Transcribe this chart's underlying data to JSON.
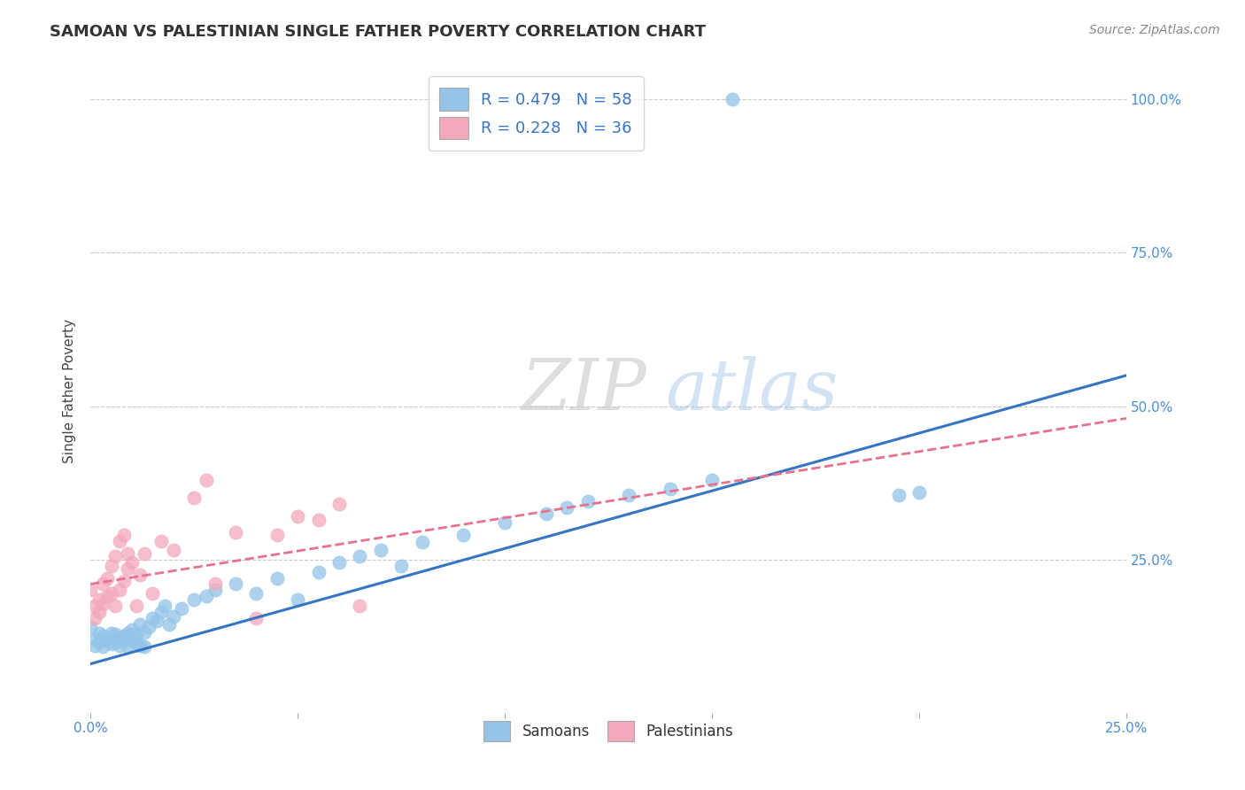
{
  "title": "SAMOAN VS PALESTINIAN SINGLE FATHER POVERTY CORRELATION CHART",
  "source": "Source: ZipAtlas.com",
  "ylabel": "Single Father Poverty",
  "samoan_color": "#93c4e8",
  "samoan_edge_color": "#93c4e8",
  "palestinian_color": "#f4a8bb",
  "samoan_line_color": "#3575c3",
  "palestinian_line_color": "#e8728e",
  "background_color": "#ffffff",
  "grid_color": "#cccccc",
  "samoan_points": [
    [
      0.0,
      0.14
    ],
    [
      0.001,
      0.12
    ],
    [
      0.001,
      0.11
    ],
    [
      0.002,
      0.13
    ],
    [
      0.002,
      0.115
    ],
    [
      0.003,
      0.125
    ],
    [
      0.003,
      0.108
    ],
    [
      0.004,
      0.12
    ],
    [
      0.004,
      0.118
    ],
    [
      0.005,
      0.13
    ],
    [
      0.005,
      0.112
    ],
    [
      0.006,
      0.128
    ],
    [
      0.006,
      0.115
    ],
    [
      0.007,
      0.122
    ],
    [
      0.007,
      0.11
    ],
    [
      0.008,
      0.125
    ],
    [
      0.008,
      0.118
    ],
    [
      0.009,
      0.13
    ],
    [
      0.009,
      0.108
    ],
    [
      0.01,
      0.135
    ],
    [
      0.01,
      0.118
    ],
    [
      0.011,
      0.128
    ],
    [
      0.011,
      0.115
    ],
    [
      0.012,
      0.145
    ],
    [
      0.012,
      0.11
    ],
    [
      0.013,
      0.132
    ],
    [
      0.013,
      0.108
    ],
    [
      0.014,
      0.14
    ],
    [
      0.015,
      0.155
    ],
    [
      0.016,
      0.15
    ],
    [
      0.017,
      0.165
    ],
    [
      0.018,
      0.175
    ],
    [
      0.019,
      0.145
    ],
    [
      0.02,
      0.158
    ],
    [
      0.022,
      0.17
    ],
    [
      0.025,
      0.185
    ],
    [
      0.028,
      0.19
    ],
    [
      0.03,
      0.2
    ],
    [
      0.035,
      0.21
    ],
    [
      0.04,
      0.195
    ],
    [
      0.045,
      0.22
    ],
    [
      0.05,
      0.185
    ],
    [
      0.055,
      0.23
    ],
    [
      0.06,
      0.245
    ],
    [
      0.065,
      0.255
    ],
    [
      0.07,
      0.265
    ],
    [
      0.075,
      0.24
    ],
    [
      0.08,
      0.278
    ],
    [
      0.09,
      0.29
    ],
    [
      0.1,
      0.31
    ],
    [
      0.11,
      0.325
    ],
    [
      0.115,
      0.335
    ],
    [
      0.12,
      0.345
    ],
    [
      0.13,
      0.355
    ],
    [
      0.14,
      0.365
    ],
    [
      0.15,
      0.38
    ],
    [
      0.155,
      1.0
    ],
    [
      0.195,
      0.355
    ],
    [
      0.2,
      0.36
    ]
  ],
  "palestinian_points": [
    [
      0.0,
      0.2
    ],
    [
      0.001,
      0.155
    ],
    [
      0.001,
      0.175
    ],
    [
      0.002,
      0.165
    ],
    [
      0.002,
      0.185
    ],
    [
      0.003,
      0.178
    ],
    [
      0.003,
      0.21
    ],
    [
      0.004,
      0.19
    ],
    [
      0.004,
      0.22
    ],
    [
      0.005,
      0.195
    ],
    [
      0.005,
      0.24
    ],
    [
      0.006,
      0.175
    ],
    [
      0.006,
      0.255
    ],
    [
      0.007,
      0.2
    ],
    [
      0.007,
      0.28
    ],
    [
      0.008,
      0.215
    ],
    [
      0.008,
      0.29
    ],
    [
      0.009,
      0.235
    ],
    [
      0.009,
      0.26
    ],
    [
      0.01,
      0.245
    ],
    [
      0.011,
      0.175
    ],
    [
      0.012,
      0.225
    ],
    [
      0.013,
      0.26
    ],
    [
      0.015,
      0.195
    ],
    [
      0.017,
      0.28
    ],
    [
      0.02,
      0.265
    ],
    [
      0.025,
      0.35
    ],
    [
      0.028,
      0.38
    ],
    [
      0.03,
      0.21
    ],
    [
      0.035,
      0.295
    ],
    [
      0.04,
      0.155
    ],
    [
      0.045,
      0.29
    ],
    [
      0.05,
      0.32
    ],
    [
      0.055,
      0.315
    ],
    [
      0.06,
      0.34
    ],
    [
      0.065,
      0.175
    ]
  ],
  "xlim": [
    0.0,
    0.25
  ],
  "ylim": [
    0.0,
    1.05
  ],
  "yticks": [
    0.0,
    0.25,
    0.5,
    0.75,
    1.0
  ],
  "yticklabels_right": [
    "",
    "25.0%",
    "50.0%",
    "75.0%",
    "100.0%"
  ],
  "xtick_positions": [
    0.0,
    0.05,
    0.1,
    0.15,
    0.2,
    0.25
  ],
  "xtick_labels": [
    "0.0%",
    "",
    "",
    "",
    "",
    "25.0%"
  ],
  "tick_color": "#4a90d9",
  "title_fontsize": 13,
  "source_fontsize": 10,
  "label_fontsize": 11
}
